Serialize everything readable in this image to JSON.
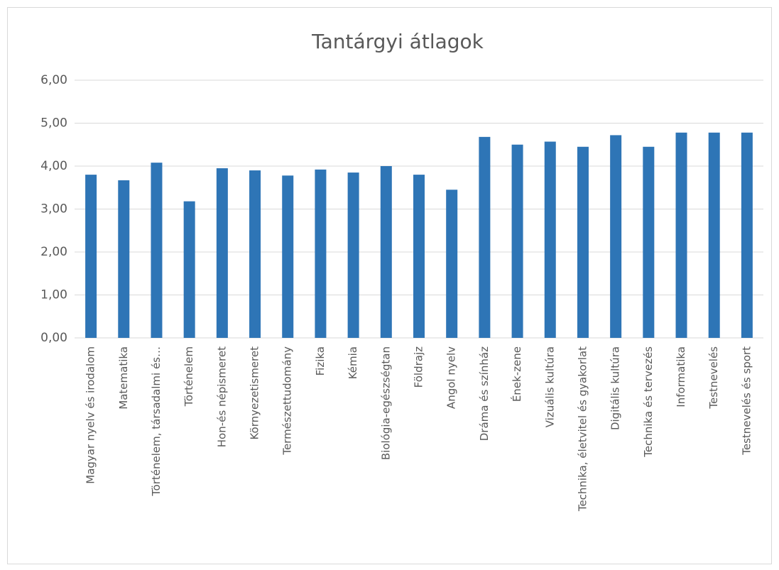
{
  "chart_data": {
    "type": "bar",
    "title": "Tantárgyi átlagok",
    "categories": [
      "Magyar nyelv és irodalom",
      "Matematika",
      "Történelem, társadalmi és…",
      "Történelem",
      "Hon-és népismeret",
      "Környezetismeret",
      "Természettudomány",
      "Fizika",
      "Kémia",
      "Biológia-egészségtan",
      "Földrajz",
      "Angol nyelv",
      "Dráma és színház",
      "Ének-zene",
      "Vizuális kultúra",
      "Technika, életvitel és gyakorlat",
      "Digitális kultúra",
      "Technika és tervezés",
      "Informatika",
      "Testnevelés",
      "Testnevelés és sport"
    ],
    "values": [
      3.8,
      3.67,
      4.08,
      3.18,
      3.95,
      3.9,
      3.78,
      3.92,
      3.85,
      4.0,
      3.8,
      3.45,
      4.68,
      4.5,
      4.57,
      4.45,
      4.72,
      4.45,
      4.78,
      4.78,
      4.78
    ],
    "color": "#2e75b6",
    "ylim": [
      0,
      6
    ],
    "yticks": [
      {
        "value": 0,
        "label": "0,00"
      },
      {
        "value": 1,
        "label": "1,00"
      },
      {
        "value": 2,
        "label": "2,00"
      },
      {
        "value": 3,
        "label": "3,00"
      },
      {
        "value": 4,
        "label": "4,00"
      },
      {
        "value": 5,
        "label": "5,00"
      },
      {
        "value": 6,
        "label": "6,00"
      }
    ],
    "grid": true
  }
}
